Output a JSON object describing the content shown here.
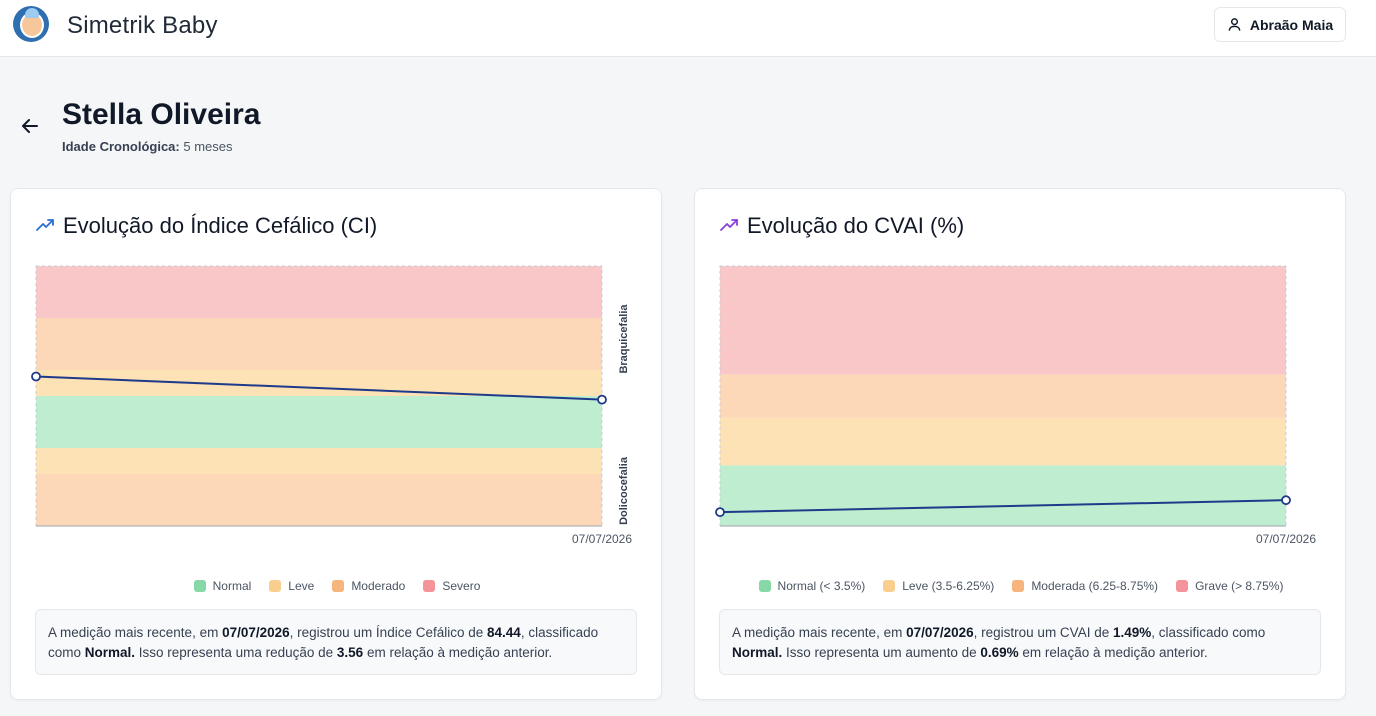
{
  "app": {
    "title": "Simetrik Baby",
    "user_name": "Abraão Maia"
  },
  "patient": {
    "name": "Stella Oliveira",
    "age_label": "Idade Cronológica:",
    "age_value": "5 meses"
  },
  "ci_card": {
    "title": "Evolução do Índice Cefálico (CI)",
    "side_labels": [
      "Braquicefalia",
      "Dolicocefalia"
    ],
    "legend": [
      {
        "label": "Normal",
        "color": "#86d9a6"
      },
      {
        "label": "Leve",
        "color": "#f8cf8f"
      },
      {
        "label": "Moderado",
        "color": "#f5b57c"
      },
      {
        "label": "Severo",
        "color": "#f4949a"
      }
    ],
    "summary": {
      "p1": "A medição mais recente, em ",
      "date": "07/07/2026",
      "p2": ", registrou um Índice Cefálico de ",
      "value": "84.44",
      "p3": ", classificado como ",
      "classification": "Normal.",
      "p4": " Isso representa uma redução de ",
      "delta": "3.56",
      "p5": " em relação à medição anterior."
    }
  },
  "cvai_card": {
    "title": "Evolução do CVAI (%)",
    "legend": [
      {
        "label": "Normal (< 3.5%)",
        "color": "#86d9a6"
      },
      {
        "label": "Leve (3.5-6.25%)",
        "color": "#f8cf8f"
      },
      {
        "label": "Moderada (6.25-8.75%)",
        "color": "#f5b57c"
      },
      {
        "label": "Grave (> 8.75%)",
        "color": "#f4949a"
      }
    ],
    "summary": {
      "p1": "A medição mais recente, em ",
      "date": "07/07/2026",
      "p2": ", registrou um CVAI de ",
      "value": "1.49%",
      "p3": ", classificado como ",
      "classification": "Normal.",
      "p4": " Isso representa um aumento de ",
      "delta": "0.69%",
      "p5": " em relação à medição anterior."
    }
  },
  "chart_data": [
    {
      "type": "line",
      "title": "Evolução do Índice Cefálico (CI)",
      "x": [
        "",
        "07/07/2026"
      ],
      "series": [
        {
          "values": [
            88.0,
            84.44
          ]
        }
      ],
      "ylim": [
        65,
        105
      ],
      "bands": [
        {
          "from": 65,
          "to": 73,
          "color": "#fcd8b8"
        },
        {
          "from": 73,
          "to": 77,
          "color": "#fce2b4"
        },
        {
          "from": 77,
          "to": 85,
          "color": "#bfedd0"
        },
        {
          "from": 85,
          "to": 89,
          "color": "#fce2b4"
        },
        {
          "from": 89,
          "to": 97,
          "color": "#fcd8b8"
        },
        {
          "from": 97,
          "to": 105,
          "color": "#f9c7c7"
        }
      ],
      "line_color": "#1e3a8a",
      "grid": false
    },
    {
      "type": "line",
      "title": "Evolução do CVAI (%)",
      "x": [
        "",
        "07/07/2026"
      ],
      "series": [
        {
          "values": [
            0.8,
            1.49
          ]
        }
      ],
      "ylim": [
        0,
        15
      ],
      "bands": [
        {
          "from": 0,
          "to": 3.5,
          "color": "#bfedd0"
        },
        {
          "from": 3.5,
          "to": 6.25,
          "color": "#fce2b4"
        },
        {
          "from": 6.25,
          "to": 8.75,
          "color": "#fcd8b8"
        },
        {
          "from": 8.75,
          "to": 15,
          "color": "#f9c7c7"
        }
      ],
      "line_color": "#1e3a8a",
      "grid": false
    }
  ]
}
